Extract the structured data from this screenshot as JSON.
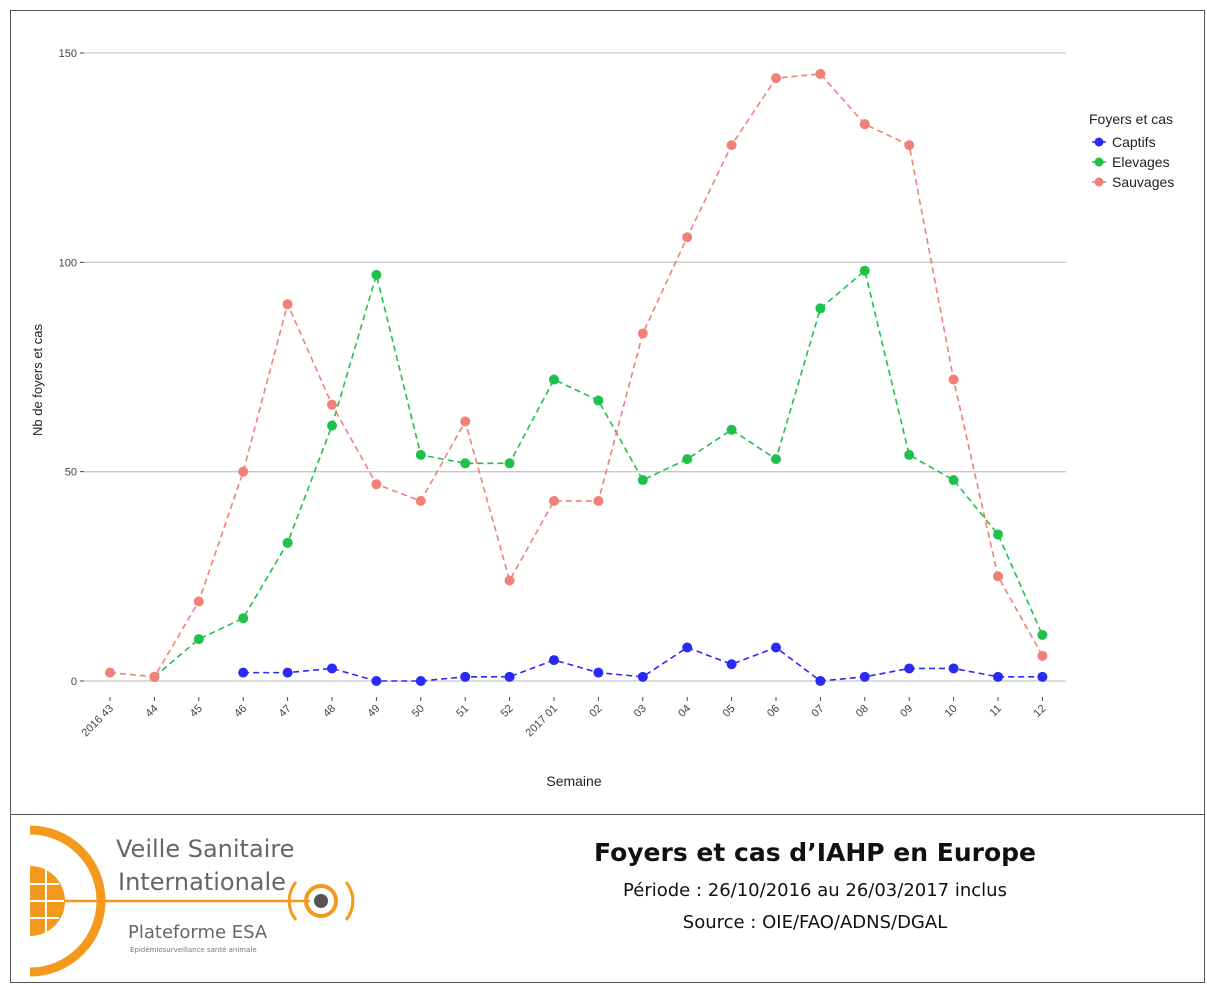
{
  "chart_data": {
    "type": "line",
    "title": "",
    "xlabel": "Semaine",
    "ylabel": "Nb de foyers et cas",
    "ylim": [
      0,
      150
    ],
    "yticks": [
      0,
      50,
      100,
      150
    ],
    "grid": true,
    "line_style": "dashed",
    "legend": {
      "title": "Foyers et cas",
      "placement": "right-top"
    },
    "categories": [
      "2016 43",
      "44",
      "45",
      "46",
      "47",
      "48",
      "49",
      "50",
      "51",
      "52",
      "2017 01",
      "02",
      "03",
      "04",
      "05",
      "06",
      "07",
      "08",
      "09",
      "10",
      "11",
      "12"
    ],
    "series": [
      {
        "name": "Captifs",
        "color": "#2a2af5",
        "values": [
          null,
          null,
          null,
          2,
          2,
          3,
          0,
          0,
          1,
          1,
          5,
          2,
          1,
          8,
          4,
          8,
          0,
          1,
          3,
          3,
          1,
          1
        ]
      },
      {
        "name": "Elevages",
        "color": "#1fc04c",
        "values": [
          null,
          1,
          10,
          15,
          33,
          61,
          97,
          54,
          52,
          52,
          72,
          67,
          48,
          53,
          60,
          53,
          89,
          98,
          54,
          48,
          35,
          11
        ]
      },
      {
        "name": "Sauvages",
        "color": "#f08078",
        "values": [
          2,
          1,
          19,
          50,
          90,
          66,
          47,
          43,
          62,
          24,
          43,
          43,
          83,
          106,
          128,
          144,
          145,
          133,
          128,
          72,
          25,
          6
        ]
      }
    ]
  },
  "footer": {
    "title": "Foyers et cas d’IAHP en Europe",
    "period": "Période : 26/10/2016 au 26/03/2017 inclus",
    "source": "Source : OIE/FAO/ADNS/DGAL"
  },
  "logo": {
    "line1": "Veille Sanitaire",
    "line2": "Internationale",
    "line3": "Plateforme ESA",
    "line4": "Epidémiosurveillance santé animale",
    "accent": "#f39a1e"
  }
}
